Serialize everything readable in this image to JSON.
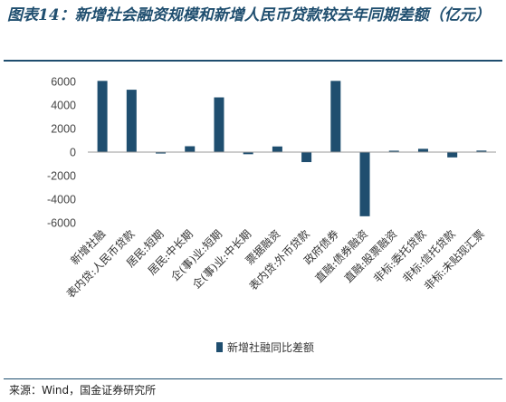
{
  "header": {
    "title": "图表14：新增社会融资规模和新增人民币贷款较去年同期差额（亿元）"
  },
  "footer": {
    "source": "来源：Wind，国金证券研究所"
  },
  "chart_data": {
    "type": "bar",
    "categories": [
      "新增社融",
      "表内贷:人民币贷款",
      "居民:短期",
      "居民:中长期",
      "企(事)业:短期",
      "企(事)业:中长期",
      "票据融资",
      "表内贷:外币贷款",
      "政府债券",
      "直融:债券融资",
      "直融:股票融资",
      "非标:委托贷款",
      "非标:信托贷款",
      "非标:未贴现汇票"
    ],
    "series": [
      {
        "name": "新增社融同比差额",
        "color": "#1f4e6f",
        "values": [
          6050,
          5300,
          -120,
          500,
          4650,
          -180,
          480,
          -850,
          6050,
          -5450,
          120,
          280,
          -450,
          130
        ]
      }
    ],
    "ylim": [
      -6000,
      6000
    ],
    "yticks": [
      6000,
      4000,
      2000,
      0,
      -2000,
      -4000,
      -6000
    ],
    "grid": false,
    "legend": "bottom-center"
  }
}
